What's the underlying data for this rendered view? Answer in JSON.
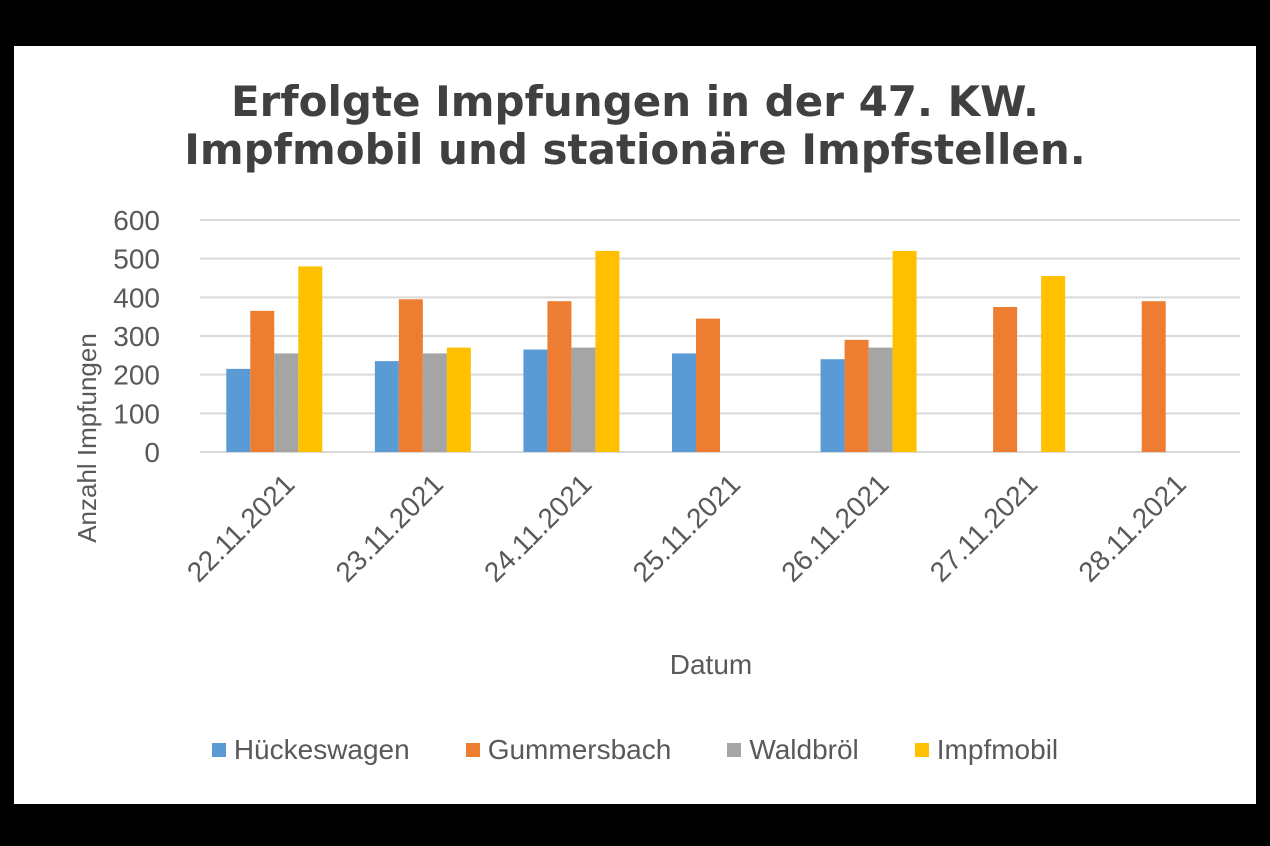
{
  "chart_data": {
    "type": "bar",
    "title": [
      "Erfolgte Impfungen in der 47. KW.",
      "Impfmobil und stationäre Impfstellen."
    ],
    "xlabel": "Datum",
    "ylabel": "Anzahl Impfungen",
    "ylim": [
      0,
      600
    ],
    "yticks": [
      0,
      100,
      200,
      300,
      400,
      500,
      600
    ],
    "grid": true,
    "legend_position": "bottom",
    "categories": [
      "22.11.2021",
      "23.11.2021",
      "24.11.2021",
      "25.11.2021",
      "26.11.2021",
      "27.11.2021",
      "28.11.2021"
    ],
    "series": [
      {
        "name": "Hückeswagen",
        "color": "#5B9BD5",
        "values": [
          215,
          235,
          265,
          255,
          240,
          null,
          null
        ]
      },
      {
        "name": "Gummersbach",
        "color": "#ED7D31",
        "values": [
          365,
          395,
          390,
          345,
          290,
          375,
          390
        ]
      },
      {
        "name": "Waldbröl",
        "color": "#A5A5A5",
        "values": [
          255,
          255,
          270,
          null,
          270,
          null,
          null
        ]
      },
      {
        "name": "Impfmobil",
        "color": "#FFC000",
        "values": [
          480,
          270,
          520,
          null,
          520,
          455,
          null
        ]
      }
    ]
  }
}
